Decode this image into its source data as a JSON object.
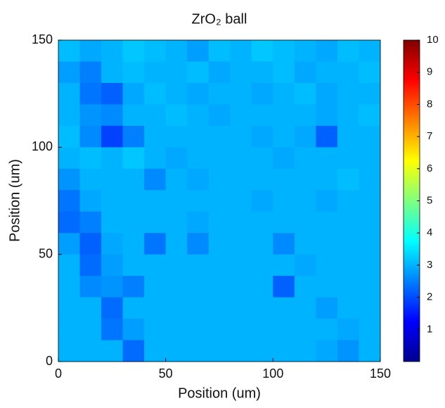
{
  "chart_data": {
    "type": "heatmap",
    "title": "ZrO₂ ball",
    "x_label": "Position (um)",
    "y_label": "Position (um)",
    "xlim": [
      0,
      150
    ],
    "ylim": [
      0,
      150
    ],
    "xticks": [
      0,
      50,
      100,
      150
    ],
    "yticks": [
      0,
      50,
      100,
      150
    ],
    "colormap": "jet",
    "clim": [
      0,
      10
    ],
    "cticks": [
      1,
      2,
      3,
      4,
      5,
      6,
      7,
      8,
      9,
      10
    ],
    "z": [
      [
        3.1,
        2.9,
        3.0,
        3.2,
        3.1,
        3.0,
        2.8,
        3.1,
        3.0,
        3.2,
        3.1,
        3.0,
        2.9,
        3.1,
        3.0
      ],
      [
        2.8,
        2.5,
        3.0,
        3.1,
        3.0,
        3.0,
        3.1,
        2.9,
        3.0,
        3.0,
        3.1,
        2.9,
        3.0,
        3.0,
        3.1
      ],
      [
        3.0,
        2.4,
        2.2,
        2.9,
        3.1,
        3.0,
        2.9,
        3.0,
        3.0,
        2.9,
        3.0,
        3.1,
        2.9,
        3.0,
        3.0
      ],
      [
        3.0,
        2.7,
        2.6,
        3.0,
        3.0,
        3.1,
        3.0,
        2.9,
        3.0,
        3.0,
        3.0,
        3.0,
        2.9,
        3.0,
        3.1
      ],
      [
        3.1,
        2.6,
        1.9,
        2.5,
        3.0,
        3.0,
        3.0,
        3.0,
        3.0,
        2.9,
        3.0,
        2.9,
        2.2,
        3.0,
        3.0
      ],
      [
        3.0,
        3.1,
        3.0,
        3.2,
        3.0,
        2.9,
        3.0,
        3.0,
        3.0,
        3.0,
        2.9,
        3.0,
        3.0,
        3.0,
        3.0
      ],
      [
        2.7,
        3.0,
        3.0,
        3.0,
        2.6,
        3.0,
        2.9,
        3.0,
        3.0,
        3.0,
        3.0,
        3.0,
        3.0,
        3.1,
        3.0
      ],
      [
        2.4,
        2.9,
        3.0,
        3.0,
        3.0,
        3.0,
        3.0,
        3.0,
        3.0,
        2.9,
        3.0,
        3.0,
        2.9,
        3.0,
        3.0
      ],
      [
        2.3,
        2.5,
        3.0,
        3.0,
        3.0,
        3.0,
        2.9,
        3.0,
        3.0,
        3.0,
        3.0,
        3.0,
        3.0,
        3.0,
        3.0
      ],
      [
        2.8,
        2.2,
        2.9,
        3.0,
        2.4,
        3.0,
        2.6,
        3.0,
        3.0,
        3.0,
        2.6,
        3.0,
        3.0,
        3.0,
        3.0
      ],
      [
        3.0,
        2.3,
        2.8,
        3.0,
        3.0,
        3.0,
        3.0,
        3.0,
        3.0,
        3.0,
        3.0,
        2.9,
        3.0,
        3.0,
        3.0
      ],
      [
        3.0,
        2.6,
        2.7,
        2.5,
        3.0,
        3.0,
        3.0,
        3.0,
        3.0,
        3.0,
        2.2,
        3.0,
        3.0,
        3.0,
        3.0
      ],
      [
        3.0,
        3.0,
        2.3,
        3.0,
        3.0,
        3.0,
        3.0,
        3.0,
        3.0,
        3.0,
        3.0,
        3.0,
        2.8,
        3.0,
        3.0
      ],
      [
        3.0,
        3.0,
        2.4,
        2.8,
        3.0,
        3.0,
        3.0,
        3.0,
        3.0,
        3.0,
        3.0,
        3.0,
        3.0,
        2.9,
        3.0
      ],
      [
        3.0,
        3.0,
        3.0,
        2.3,
        3.0,
        3.0,
        3.0,
        3.0,
        3.0,
        3.0,
        3.0,
        3.0,
        2.9,
        2.7,
        3.0
      ]
    ]
  }
}
